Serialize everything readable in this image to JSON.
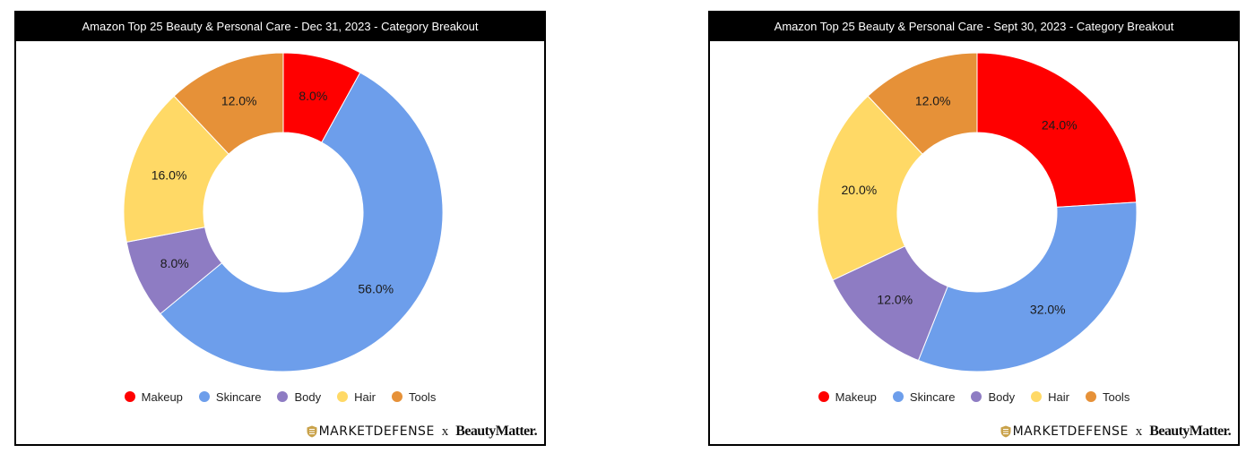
{
  "chart_data": [
    {
      "type": "pie",
      "title": "Amazon Top 25 Beauty & Personal Care - Dec 31, 2023 - Category Breakout",
      "categories": [
        "Makeup",
        "Skincare",
        "Body",
        "Hair",
        "Tools"
      ],
      "values": [
        8.0,
        56.0,
        8.0,
        16.0,
        12.0
      ],
      "labels": [
        "8.0%",
        "56.0%",
        "8.0%",
        "16.0%",
        "12.0%"
      ],
      "colors": [
        "#ff0000",
        "#6d9eeb",
        "#8e7cc3",
        "#ffd966",
        "#e69138"
      ],
      "donut": true,
      "legend_position": "bottom"
    },
    {
      "type": "pie",
      "title": "Amazon Top 25 Beauty & Personal Care - Sept 30, 2023 - Category Breakout",
      "categories": [
        "Makeup",
        "Skincare",
        "Body",
        "Hair",
        "Tools"
      ],
      "values": [
        24.0,
        32.0,
        12.0,
        20.0,
        12.0
      ],
      "labels": [
        "24.0%",
        "32.0%",
        "12.0%",
        "20.0%",
        "12.0%"
      ],
      "colors": [
        "#ff0000",
        "#6d9eeb",
        "#8e7cc3",
        "#ffd966",
        "#e69138"
      ],
      "donut": true,
      "legend_position": "bottom"
    }
  ],
  "branding": {
    "marketdefense": "MARKETDEFENSE",
    "separator": "x",
    "beautymatter": "BeautyMatter."
  },
  "colors": {
    "header_background": "#000000",
    "header_text": "#ffffff",
    "logo_gold": "#c9a24a"
  }
}
